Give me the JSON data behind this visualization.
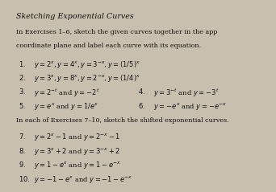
{
  "background_color": "#c8bfaf",
  "text_color": "#111111",
  "title": "Sketching Exponential Curves",
  "intro1": "In Exercises 1–6, sketch the given curves together in the app",
  "intro2": "coordinate plane and label each curve with its equation.",
  "ex1": "y = 2^{x}, y = 4^{x}, y = 3^{-x}, y = (1/5)^{x}",
  "ex2": "y = 3^{x}, y = 8^{x}, y = 2^{-x}, y = (1/4)^{x}",
  "ex3l": "y = 2^{-t} and y = -2^{t}",
  "ex3r": "y = 3^{-t} and y = -3^{t}",
  "ex5l": "y = e^{x} and y = 1/e^{x}",
  "ex5r": "y = -e^{x} and y = -e^{-x}",
  "sec2": "In each of Exercises 7–10, sketch the shifted exponential curves.",
  "ex7": "y = 2^{x} - 1 and y = 2^{-x} - 1",
  "ex8": "y = 3^{x} + 2 and y = 3^{-x} + 2",
  "ex9": "y = 1 - e^{x} and y = 1 - e^{-x}",
  "ex10": "y = -1 - e^{x} and y = -1 - e^{-x}",
  "fs_title": 6.8,
  "fs_intro": 5.8,
  "fs_body": 6.0,
  "lh": 0.092
}
